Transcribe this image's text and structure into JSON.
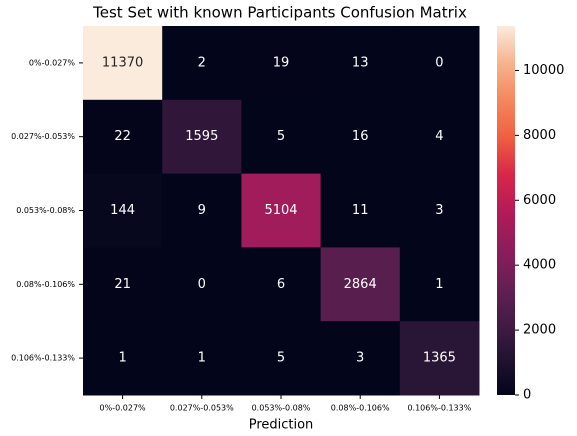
{
  "chart_data": {
    "type": "heatmap",
    "title": "Test Set with known Participants Confusion Matrix",
    "xlabel": "Prediction",
    "categories": [
      "0%-0.027%",
      "0.027%-0.053%",
      "0.053%-0.08%",
      "0.08%-0.106%",
      "0.106%-0.133%"
    ],
    "row_categories": [
      "0%-0.027%",
      "0.027%-0.053%",
      "0.053%-0.08%",
      "0.08%-0.106%",
      "0.106%-0.133%"
    ],
    "values": [
      [
        11370,
        2,
        19,
        13,
        0
      ],
      [
        22,
        1595,
        5,
        16,
        4
      ],
      [
        144,
        9,
        5104,
        11,
        3
      ],
      [
        21,
        0,
        6,
        2864,
        1
      ],
      [
        1,
        1,
        5,
        3,
        1365
      ]
    ],
    "zlim": [
      0,
      11370
    ],
    "zticks": [
      0,
      2000,
      4000,
      6000,
      8000,
      10000
    ],
    "colormap": [
      "#03051a",
      "#221331",
      "#451c47",
      "#691f55",
      "#8e1d5b",
      "#b51a59",
      "#d92847",
      "#f06043",
      "#f4875e",
      "#f6b48e",
      "#faebdd"
    ]
  }
}
